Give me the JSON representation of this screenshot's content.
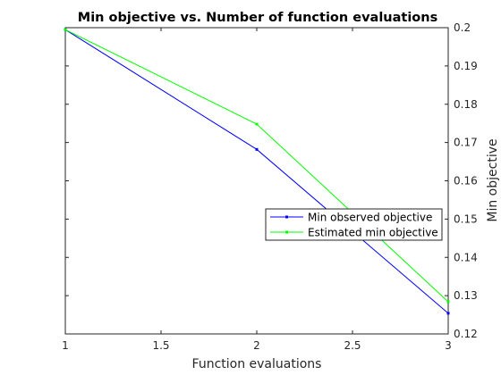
{
  "chart_data": {
    "type": "line",
    "title": "Min objective vs. Number of function evaluations",
    "xlabel": "Function evaluations",
    "ylabel": "Min objective",
    "xlim": [
      1,
      3
    ],
    "ylim": [
      0.12,
      0.2
    ],
    "xticks": [
      "1",
      "1.5",
      "2",
      "2.5",
      "3"
    ],
    "yticks": [
      "0.2",
      "0.19",
      "0.18",
      "0.17",
      "0.16",
      "0.15",
      "0.14",
      "0.13",
      "0.12"
    ],
    "y_axis_side": "right",
    "grid": false,
    "legend_position": "center-right",
    "series": [
      {
        "name": "Min observed objective",
        "color": "#0000ff",
        "x": [
          1,
          2,
          3
        ],
        "y": [
          0.1995,
          0.1682,
          0.1254
        ]
      },
      {
        "name": "Estimated min objective",
        "color": "#00ff00",
        "x": [
          1,
          2,
          3
        ],
        "y": [
          0.1995,
          0.1748,
          0.1284
        ]
      }
    ]
  }
}
